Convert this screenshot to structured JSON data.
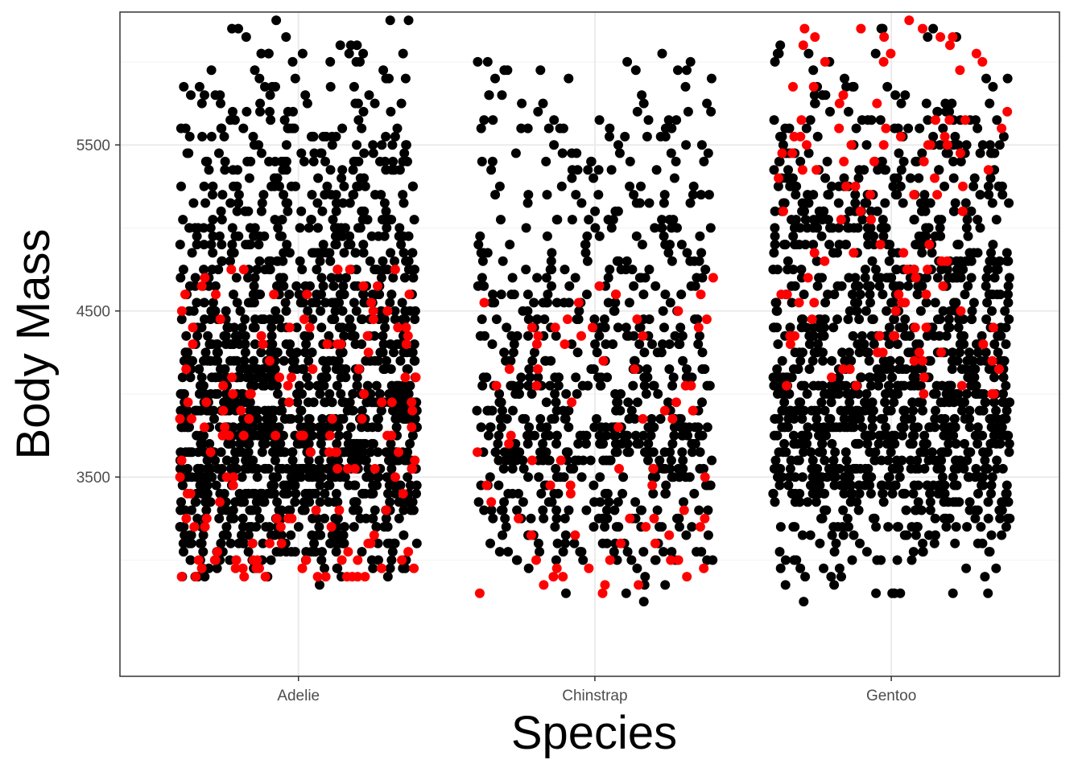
{
  "chart_data": {
    "type": "scatter",
    "style": "jittered strip plot",
    "xlabel": "Species",
    "ylabel": "Body Mass",
    "categories": [
      "Adelie",
      "Chinstrap",
      "Gentoo"
    ],
    "ylim": [
      2300,
      6300
    ],
    "yticks": [
      3500,
      4500,
      5500
    ],
    "grid": true,
    "legend": "none",
    "colors": {
      "point": "#000000",
      "highlight": "#ff0000",
      "grid": "#ebebeb",
      "border": "#333333"
    },
    "series": [
      {
        "category": "Adelie",
        "y_range": [
          2850,
          6250
        ],
        "approx_points": 1460,
        "highlighted_points": 150,
        "highlight_y_range": [
          2900,
          4750
        ]
      },
      {
        "category": "Chinstrap",
        "y_range": [
          2700,
          6050
        ],
        "approx_points": 680,
        "highlighted_points": 75,
        "highlight_y_range": [
          2700,
          4800
        ]
      },
      {
        "category": "Gentoo",
        "y_range": [
          2750,
          6250
        ],
        "approx_points": 1240,
        "highlighted_points": 115,
        "highlight_y_range": [
          3900,
          6250
        ]
      }
    ]
  }
}
